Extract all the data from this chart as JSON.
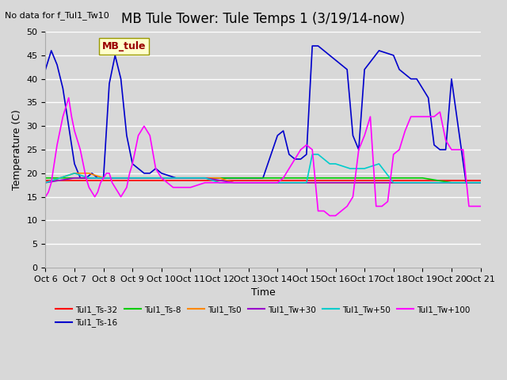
{
  "title": "MB Tule Tower: Tule Temps 1 (3/19/14-now)",
  "top_left_text": "No data for f_Tul1_Tw10",
  "xlabel": "Time",
  "ylabel": "Temperature (C)",
  "ylim": [
    0,
    50
  ],
  "yticks": [
    0,
    5,
    10,
    15,
    20,
    25,
    30,
    35,
    40,
    45,
    50
  ],
  "bg_color": "#d8d8d8",
  "grid_color": "#ffffff",
  "legend_box_label": "MB_tule",
  "legend_box_color": "#ffffcc",
  "legend_box_text_color": "#990000",
  "series": [
    {
      "label": "Tul1_Ts-32",
      "color": "#ff0000",
      "lw": 1.2,
      "x": [
        0,
        1,
        2,
        3,
        4,
        5,
        6,
        7,
        8,
        9,
        10,
        11,
        12,
        13,
        14,
        15
      ],
      "y": [
        18.5,
        18.5,
        18.5,
        18.5,
        18.5,
        18.5,
        18.5,
        18.5,
        18.5,
        18.5,
        18.5,
        18.5,
        18.5,
        18.5,
        18.5,
        18.5
      ]
    },
    {
      "label": "Tul1_Ts-16",
      "color": "#0000cc",
      "lw": 1.2,
      "x": [
        0,
        0.2,
        0.4,
        0.6,
        0.8,
        1.0,
        1.2,
        1.4,
        1.6,
        1.8,
        2.0,
        2.2,
        2.4,
        2.6,
        2.8,
        3.0,
        3.2,
        3.4,
        3.6,
        3.8,
        4.0,
        4.5,
        5.0,
        5.5,
        6.0,
        6.5,
        7.0,
        7.5,
        8.0,
        8.2,
        8.4,
        8.6,
        8.8,
        9.0,
        9.2,
        9.4,
        9.6,
        9.8,
        10.0,
        10.2,
        10.4,
        10.6,
        10.8,
        11.0,
        11.5,
        12.0,
        12.2,
        12.4,
        12.6,
        12.8,
        13.0,
        13.2,
        13.4,
        13.6,
        13.8,
        14.0,
        14.5,
        15.0
      ],
      "y": [
        42,
        46,
        43,
        38,
        30,
        22,
        19,
        19,
        20,
        19,
        19,
        39,
        45,
        40,
        28,
        22,
        21,
        20,
        20,
        21,
        20,
        19,
        19,
        19,
        19,
        19,
        19,
        19,
        28,
        29,
        24,
        23,
        23,
        24,
        47,
        47,
        46,
        45,
        44,
        43,
        42,
        28,
        25,
        42,
        46,
        45,
        42,
        41,
        40,
        40,
        38,
        36,
        26,
        25,
        25,
        40,
        18,
        18
      ]
    },
    {
      "label": "Tul1_Ts-8",
      "color": "#00cc00",
      "lw": 1.2,
      "x": [
        0,
        1,
        2,
        3,
        4,
        5,
        6,
        7,
        8,
        9,
        10,
        11,
        12,
        13,
        14,
        15
      ],
      "y": [
        19,
        19,
        19,
        19,
        19,
        19,
        19,
        19,
        19,
        19,
        19,
        19,
        19,
        19,
        18,
        18
      ]
    },
    {
      "label": "Tul1_Ts0",
      "color": "#ff8800",
      "lw": 1.2,
      "x": [
        0,
        0.5,
        1.0,
        1.5,
        2.0,
        2.5,
        3.0,
        3.5,
        4.0,
        4.5,
        5.0,
        5.5,
        6.0,
        6.5,
        7.0,
        7.5,
        8.0,
        8.5,
        9.0,
        9.5,
        10.0,
        10.5,
        11.0,
        11.5,
        12.0,
        12.5,
        13.0,
        13.5,
        14.0,
        14.5,
        15.0
      ],
      "y": [
        18,
        19,
        20,
        20,
        19,
        19,
        19,
        19,
        19,
        19,
        19,
        19,
        19,
        18,
        18,
        18,
        18,
        18,
        18,
        18,
        18,
        18,
        18,
        18,
        18,
        18,
        18,
        18,
        18,
        18,
        18
      ]
    },
    {
      "label": "Tul1_Tw+30",
      "color": "#9900cc",
      "lw": 1.2,
      "x": [
        0,
        0.5,
        1.0,
        1.5,
        2.0,
        2.5,
        3.0,
        3.5,
        4.0,
        4.5,
        5.0,
        5.5,
        6.0,
        6.5,
        7.0,
        7.5,
        8.0,
        8.5,
        9.0,
        9.5,
        10.0,
        10.5,
        11.0,
        11.5,
        12.0,
        12.5,
        13.0,
        13.5,
        14.0,
        14.5,
        15.0
      ],
      "y": [
        18,
        18.5,
        19,
        19,
        19,
        19,
        19,
        19,
        19,
        19,
        19,
        19,
        18.5,
        18,
        18,
        18,
        18,
        18,
        18,
        18,
        18,
        18,
        18,
        18,
        18,
        18,
        18,
        18,
        18,
        18,
        18
      ]
    },
    {
      "label": "Tul1_Tw+50",
      "color": "#00cccc",
      "lw": 1.2,
      "x": [
        0,
        0.5,
        1.0,
        1.5,
        2.0,
        2.5,
        3.0,
        3.5,
        4.0,
        4.5,
        5.0,
        5.5,
        6.0,
        6.5,
        7.0,
        7.5,
        8.0,
        8.5,
        9.0,
        9.2,
        9.4,
        9.6,
        9.8,
        10.0,
        10.5,
        11.0,
        11.5,
        12.0,
        12.5,
        13.0,
        13.5,
        14.0,
        14.5,
        15.0
      ],
      "y": [
        18,
        19,
        20,
        19,
        19,
        19,
        19,
        19,
        19,
        19,
        19,
        19,
        18,
        18,
        18,
        18,
        18,
        18,
        18,
        24,
        24,
        23,
        22,
        22,
        21,
        21,
        22,
        18,
        18,
        18,
        18,
        18,
        18,
        18
      ]
    },
    {
      "label": "Tul1_Tw+100",
      "color": "#ff00ff",
      "lw": 1.2,
      "x": [
        0,
        0.1,
        0.2,
        0.3,
        0.4,
        0.5,
        0.6,
        0.7,
        0.8,
        0.9,
        1.0,
        1.1,
        1.2,
        1.3,
        1.4,
        1.5,
        1.6,
        1.7,
        1.8,
        1.9,
        2.0,
        2.1,
        2.2,
        2.3,
        2.4,
        2.5,
        2.6,
        2.7,
        2.8,
        2.9,
        3.0,
        3.2,
        3.4,
        3.6,
        3.8,
        4.0,
        4.2,
        4.4,
        4.6,
        4.8,
        5.0,
        5.5,
        6.0,
        6.5,
        7.0,
        7.5,
        8.0,
        8.2,
        8.4,
        8.6,
        8.8,
        9.0,
        9.2,
        9.4,
        9.6,
        9.8,
        10.0,
        10.2,
        10.4,
        10.6,
        10.8,
        11.0,
        11.2,
        11.4,
        11.6,
        11.8,
        12.0,
        12.2,
        12.4,
        12.6,
        12.8,
        13.0,
        13.2,
        13.4,
        13.6,
        13.8,
        14.0,
        14.2,
        14.4,
        14.6,
        14.8,
        15.0
      ],
      "y": [
        15,
        16,
        18,
        22,
        26,
        29,
        32,
        34,
        36,
        32,
        29,
        27,
        25,
        22,
        19,
        17,
        16,
        15,
        16,
        18,
        19,
        20,
        20,
        18,
        17,
        16,
        15,
        16,
        17,
        20,
        22,
        28,
        30,
        28,
        21,
        19,
        18,
        17,
        17,
        17,
        17,
        18,
        18,
        18,
        18,
        18,
        18,
        19,
        21,
        23,
        25,
        26,
        25,
        12,
        12,
        11,
        11,
        12,
        13,
        15,
        25,
        28,
        32,
        13,
        13,
        14,
        24,
        25,
        29,
        32,
        32,
        32,
        32,
        32,
        33,
        27,
        25,
        25,
        25,
        13,
        13,
        13
      ]
    }
  ],
  "xtick_positions": [
    0,
    1,
    2,
    3,
    4,
    5,
    6,
    7,
    8,
    9,
    10,
    11,
    12,
    13,
    14,
    15
  ],
  "xtick_labels": [
    "Oct 6",
    "Oct 7",
    "Oct 8",
    "Oct 9",
    "Oct 10",
    "Oct 11",
    "Oct 12",
    "Oct 13",
    "Oct 14",
    "Oct 15",
    "Oct 16",
    "Oct 17",
    "Oct 18",
    "Oct 19",
    "Oct 20",
    "Oct 21"
  ],
  "title_fontsize": 12,
  "axis_fontsize": 9,
  "tick_fontsize": 8
}
